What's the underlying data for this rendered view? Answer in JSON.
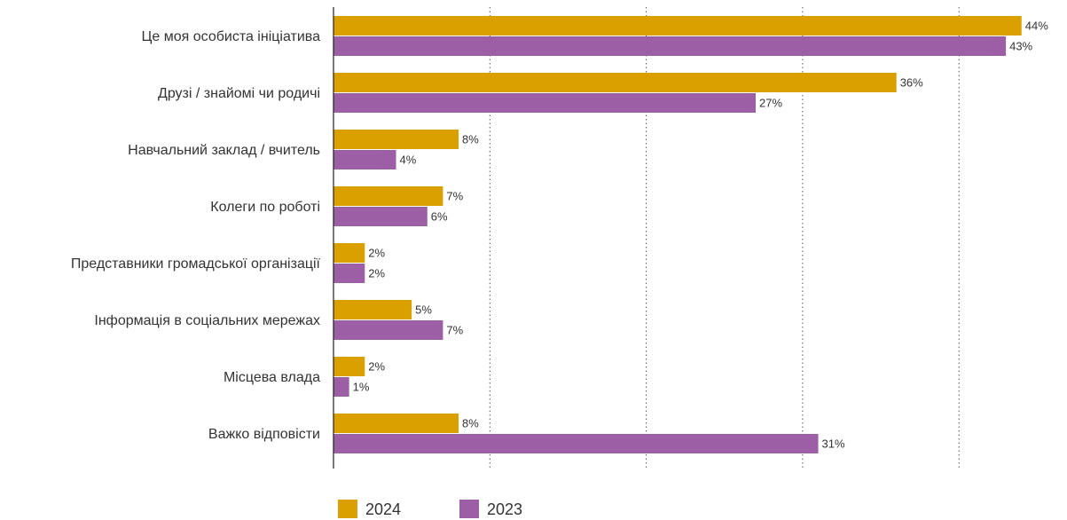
{
  "chart_data": {
    "type": "barh",
    "categories": [
      "Це моя особиста ініціатива",
      "Друзі / знайомі чи родичі",
      "Навчальний заклад / вчитель",
      "Колеги по роботі",
      "Представники громадської організації",
      "Інформація в соціальних мережах",
      "Місцева влада",
      "Важко відповісти"
    ],
    "series": [
      {
        "name": "2024",
        "color": "#d9a000",
        "values": [
          44,
          36,
          8,
          7,
          2,
          5,
          2,
          8
        ],
        "value_labels": [
          "44%",
          "36%",
          "8%",
          "7%",
          "2%",
          "5%",
          "2%",
          "8%"
        ]
      },
      {
        "name": "2023",
        "color": "#9c5ea5",
        "values": [
          43,
          27,
          4,
          6,
          2,
          7,
          1,
          31
        ],
        "value_labels": [
          "43%",
          "27%",
          "4%",
          "6%",
          "2%",
          "7%",
          "1%",
          "31%"
        ]
      }
    ],
    "xlim": [
      0,
      46
    ],
    "xticks": [
      10,
      20,
      30,
      40
    ],
    "grid": true,
    "legend": "bottom"
  }
}
